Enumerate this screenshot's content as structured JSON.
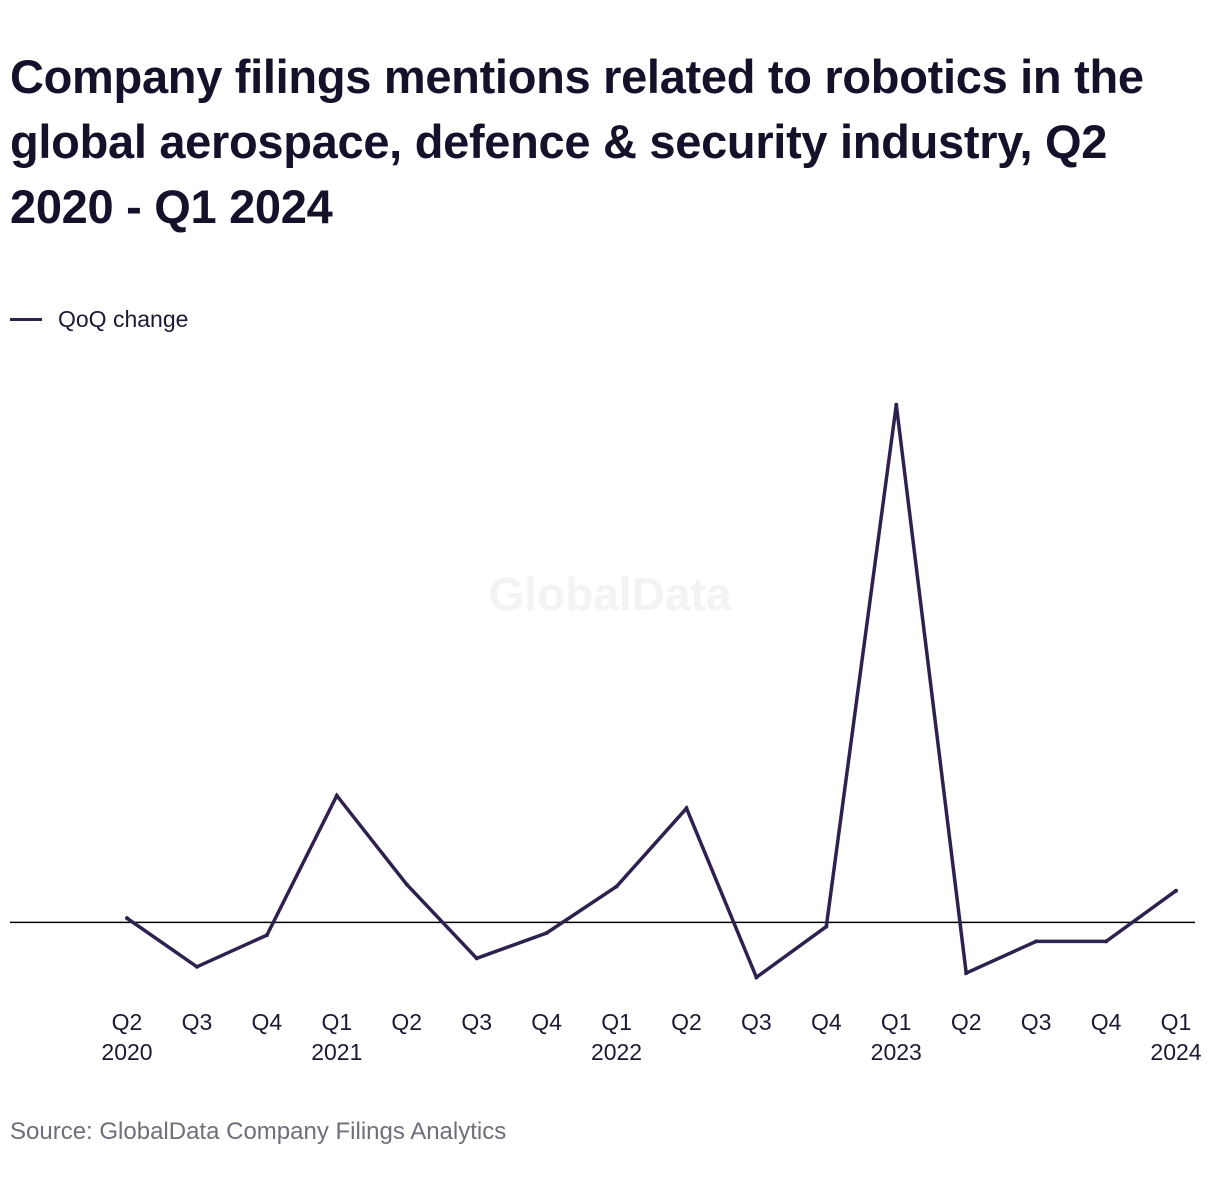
{
  "title": "Company filings mentions related to robotics in the global aerospace, defence & security industry, Q2 2020 - Q1 2024",
  "legend_label": "QoQ change",
  "watermark": "GlobalData",
  "source": "Source: GlobalData Company Filings Analytics",
  "colors": {
    "series": "#2e2150",
    "zero_line": "#000000",
    "text": "#1c1a33",
    "source_text": "#6f6f7a"
  },
  "chart_data": {
    "type": "line",
    "title": "Company filings mentions related to robotics in the global aerospace, defence & security industry, Q2 2020 - Q1 2024",
    "xlabel": "",
    "ylabel": "",
    "x_ticks": [
      [
        "Q2",
        "2020"
      ],
      [
        "Q3",
        ""
      ],
      [
        "Q4",
        ""
      ],
      [
        "Q1",
        "2021"
      ],
      [
        "Q2",
        ""
      ],
      [
        "Q3",
        ""
      ],
      [
        "Q4",
        ""
      ],
      [
        "Q1",
        "2022"
      ],
      [
        "Q2",
        ""
      ],
      [
        "Q3",
        ""
      ],
      [
        "Q4",
        ""
      ],
      [
        "Q1",
        "2023"
      ],
      [
        "Q2",
        ""
      ],
      [
        "Q3",
        ""
      ],
      [
        "Q4",
        ""
      ],
      [
        "Q1",
        "2024"
      ]
    ],
    "categories": [
      "Q2 2020",
      "Q3 2020",
      "Q4 2020",
      "Q1 2021",
      "Q2 2021",
      "Q3 2021",
      "Q4 2021",
      "Q1 2022",
      "Q2 2022",
      "Q3 2022",
      "Q4 2022",
      "Q1 2023",
      "Q2 2023",
      "Q3 2023",
      "Q4 2023",
      "Q1 2024"
    ],
    "series": [
      {
        "name": "QoQ change",
        "values": [
          2,
          -21,
          -6,
          60,
          18,
          -17,
          -5,
          17,
          54,
          -26,
          -2,
          245,
          -24,
          -9,
          -9,
          15
        ]
      }
    ],
    "ylim": [
      -32,
      252
    ],
    "zero_line": true,
    "y_axis_labels": false,
    "grid": false,
    "legend": "top-left"
  }
}
